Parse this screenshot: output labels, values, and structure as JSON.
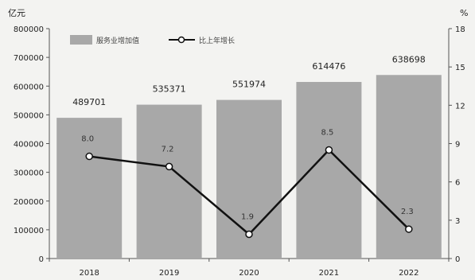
{
  "chart_data": {
    "type": "bar",
    "categories": [
      "2018",
      "2019",
      "2020",
      "2021",
      "2022"
    ],
    "series": [
      {
        "name": "服务业增加值",
        "type": "bar",
        "axis": "left",
        "values": [
          489701,
          535371,
          551974,
          614476,
          638698
        ]
      },
      {
        "name": "比上年增长",
        "type": "line",
        "axis": "right",
        "values": [
          8.0,
          7.2,
          1.9,
          8.5,
          2.3
        ]
      }
    ],
    "ylabel": "亿元",
    "y2label": "%",
    "ylim": [
      0,
      800000
    ],
    "y2lim": [
      0,
      18
    ],
    "yticks": [
      "0",
      "100000",
      "200000",
      "300000",
      "400000",
      "500000",
      "600000",
      "700000",
      "800000"
    ],
    "y2ticks": [
      "0",
      "3",
      "6",
      "9",
      "12",
      "15",
      "18"
    ],
    "bar_labels": [
      "489701",
      "535371",
      "551974",
      "614476",
      "638698"
    ],
    "line_labels": [
      "8.0",
      "7.2",
      "1.9",
      "8.5",
      "2.3"
    ],
    "legend_position": "top-left",
    "grid": false,
    "colors": {
      "bar": "#a8a8a8",
      "line": "#111111",
      "background": "#f3f3f1"
    }
  }
}
